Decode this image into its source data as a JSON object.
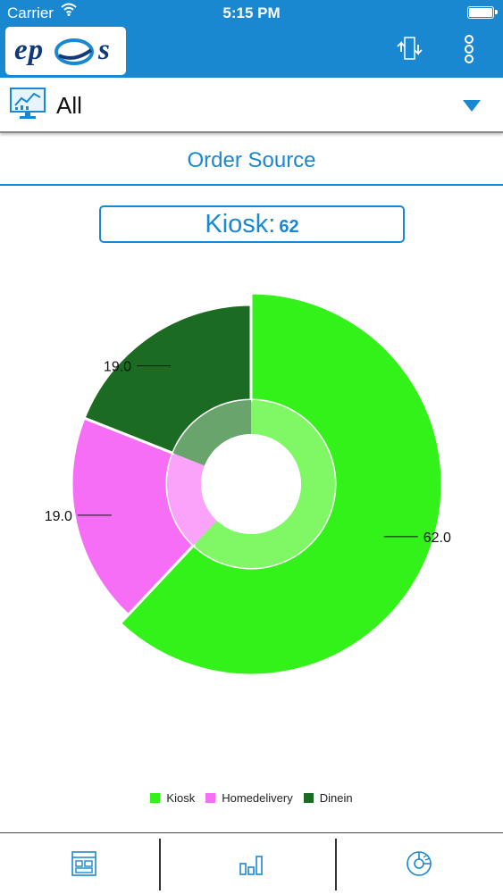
{
  "status_bar": {
    "carrier": "Carrier",
    "time": "5:15 PM"
  },
  "app_bar": {
    "logo_left": "ep",
    "logo_right": "s",
    "icons": [
      "sync-icon",
      "more-vertical-icon"
    ]
  },
  "selector": {
    "value": "All",
    "icon": "monitor-chart-icon"
  },
  "section": {
    "title": "Order Source"
  },
  "highlight": {
    "label": "Kiosk:",
    "value": "62"
  },
  "chart_data": {
    "type": "pie",
    "subtype": "donut",
    "categories": [
      "Kiosk",
      "Homedelivery",
      "Dinein"
    ],
    "values": [
      62.0,
      19.0,
      19.0
    ],
    "data_labels": [
      "62.0",
      "19.0",
      "19.0"
    ],
    "colors": [
      "#33f21a",
      "#f56ef5",
      "#1c6b22"
    ],
    "inner_colors": [
      "#80f866",
      "#fba3fb",
      "#68a46c"
    ],
    "selected": "Kiosk",
    "legend_position": "bottom"
  },
  "tabs": [
    {
      "name": "dashboard",
      "icon": "dashboard-layout-icon"
    },
    {
      "name": "reports",
      "icon": "bar-chart-icon"
    },
    {
      "name": "order-source",
      "icon": "pie-chart-icon"
    }
  ],
  "colors": {
    "brand": "#1a88d0",
    "statusbar": "#1a88d0"
  }
}
